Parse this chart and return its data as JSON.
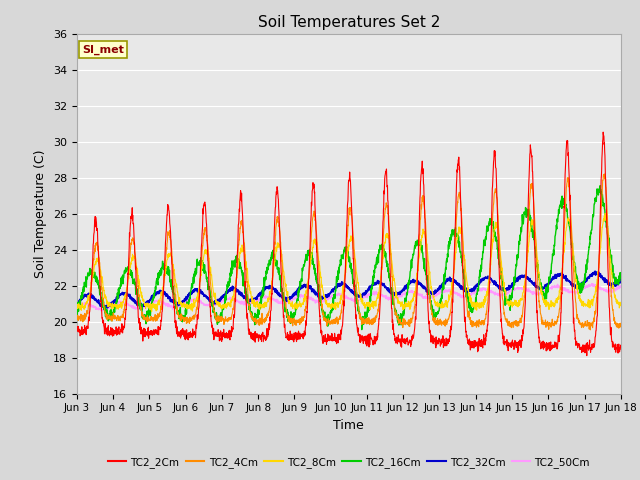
{
  "title": "Soil Temperatures Set 2",
  "xlabel": "Time",
  "ylabel": "Soil Temperature (C)",
  "ylim": [
    16,
    36
  ],
  "yticks": [
    16,
    18,
    20,
    22,
    24,
    26,
    28,
    30,
    32,
    34,
    36
  ],
  "x_start": 3,
  "x_end": 18,
  "xtick_labels": [
    "Jun 3",
    "Jun 4",
    "Jun 5",
    "Jun 6",
    "Jun 7",
    "Jun 8",
    "Jun 9",
    "Jun 10",
    "Jun 11",
    "Jun 12",
    "Jun 13",
    "Jun 14",
    "Jun 15",
    "Jun 16",
    "Jun 17",
    "Jun 18"
  ],
  "xtick_positions": [
    3,
    4,
    5,
    6,
    7,
    8,
    9,
    10,
    11,
    12,
    13,
    14,
    15,
    16,
    17,
    18
  ],
  "colors": {
    "TC2_2Cm": "#ff0000",
    "TC2_4Cm": "#ff8c00",
    "TC2_8Cm": "#ffd700",
    "TC2_16Cm": "#00cc00",
    "TC2_32Cm": "#0000cc",
    "TC2_50Cm": "#ff99ff"
  },
  "legend_label": "SI_met",
  "bg_color": "#e8e8e8",
  "grid_color": "#ffffff",
  "annotation_box_color": "#ffffcc",
  "annotation_text_color": "#8b0000"
}
